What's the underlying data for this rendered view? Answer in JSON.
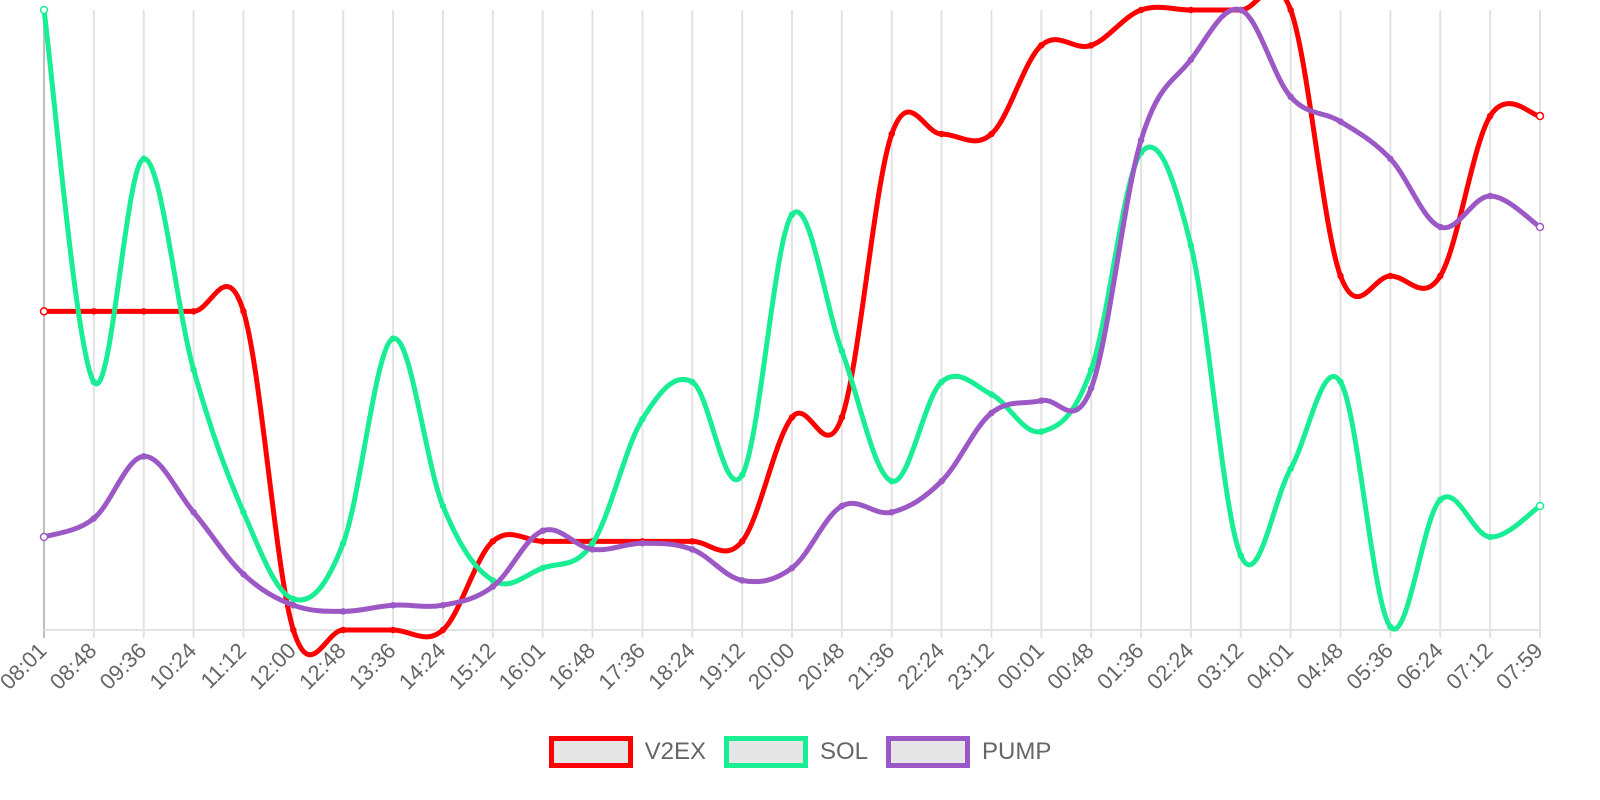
{
  "chart_data": {
    "type": "line",
    "x": [
      "08:01",
      "08:48",
      "09:36",
      "10:24",
      "11:12",
      "12:00",
      "12:48",
      "13:36",
      "14:24",
      "15:12",
      "16:01",
      "16:48",
      "17:36",
      "18:24",
      "19:12",
      "20:00",
      "20:48",
      "21:36",
      "22:24",
      "23:12",
      "00:01",
      "00:48",
      "01:36",
      "02:24",
      "03:12",
      "04:01",
      "04:48",
      "05:36",
      "06:24",
      "07:12",
      "07:59"
    ],
    "ylim": [
      0,
      100
    ],
    "grid": true,
    "legend_position": "bottom",
    "series": [
      {
        "name": "V2EX",
        "color": "#ff0000",
        "values": [
          51.4,
          51.4,
          51.4,
          51.4,
          51.4,
          0,
          0,
          0,
          0,
          14.3,
          14.3,
          14.3,
          14.3,
          14.3,
          14.3,
          34.3,
          34.3,
          80.0,
          80.0,
          80.0,
          94.3,
          94.3,
          100,
          100,
          100,
          100,
          57.1,
          57.1,
          57.1,
          82.9,
          82.9
        ]
      },
      {
        "name": "SOL",
        "color": "#1aee94",
        "values": [
          100,
          40.0,
          76.0,
          42.0,
          19.0,
          5.0,
          14.0,
          47.0,
          20.0,
          8.0,
          10.0,
          14.0,
          34.0,
          40.0,
          25.0,
          67.0,
          45.0,
          24.0,
          40.0,
          38.0,
          32.0,
          42.0,
          77.0,
          62.0,
          12.0,
          26.0,
          40.0,
          0.5,
          21.0,
          15.0,
          20.0
        ]
      },
      {
        "name": "PUMP",
        "color": "#9c59c5",
        "values": [
          15.0,
          18.0,
          28.0,
          19.0,
          9.0,
          4.0,
          3.0,
          4.0,
          4.0,
          7.0,
          16.0,
          13.0,
          14.0,
          13.0,
          8.0,
          10.0,
          20.0,
          19.0,
          24.0,
          35.0,
          37.0,
          39.0,
          79.0,
          92.0,
          100,
          86.0,
          82.0,
          76.0,
          65.0,
          70.0,
          65.0
        ]
      }
    ]
  },
  "legend": {
    "items": [
      {
        "label": "V2EX",
        "color": "#ff0000"
      },
      {
        "label": "SOL",
        "color": "#1aee94"
      },
      {
        "label": "PUMP",
        "color": "#9c59c5"
      }
    ]
  }
}
